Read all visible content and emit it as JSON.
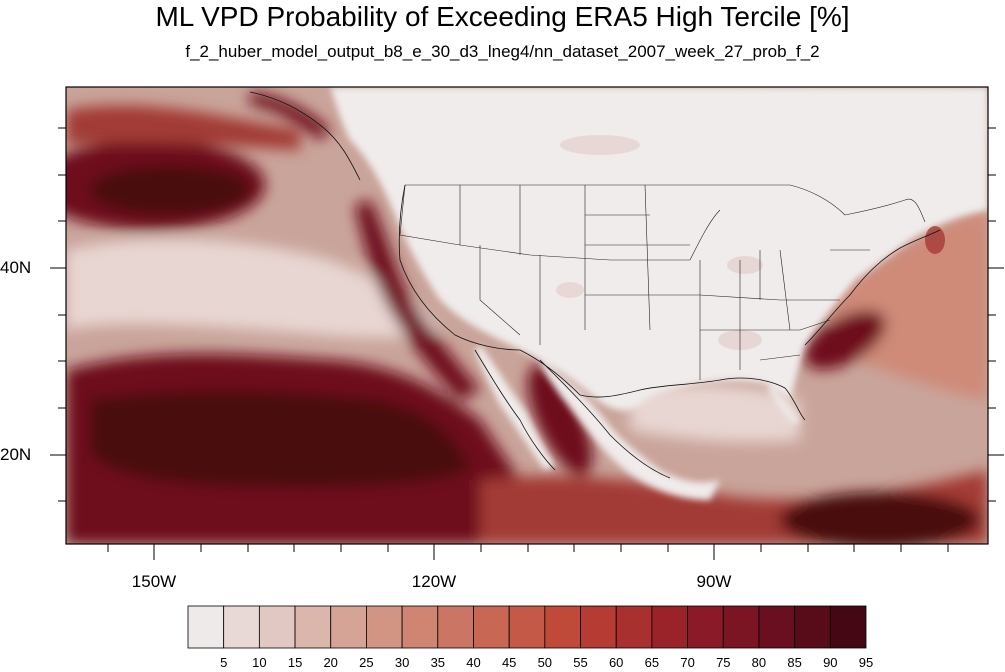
{
  "title": "ML VPD Probability of Exceeding ERA5 High Tercile [%]",
  "subtitle": "f_2_huber_model_output_b8_e_30_d3_lneg4/nn_dataset_2007_week_27_prob_f_2",
  "map": {
    "lon_labels": [
      "150W",
      "120W",
      "90W"
    ],
    "lat_labels": [
      "40N",
      "20N"
    ],
    "colors": {
      "land": "#f0eceb",
      "low": "#e7d6d2",
      "mid": "#cf8a78",
      "high": "#a23a36",
      "very_high": "#6e0f1c",
      "peak": "#4a0711"
    }
  },
  "colorbar": {
    "levels": [
      "5",
      "10",
      "15",
      "20",
      "25",
      "30",
      "35",
      "40",
      "45",
      "50",
      "55",
      "60",
      "65",
      "70",
      "75",
      "80",
      "85",
      "90",
      "95"
    ],
    "colors": [
      "#efeaea",
      "#e8d9d6",
      "#e1c8c2",
      "#dbb6ad",
      "#d5a496",
      "#d29483",
      "#cf8572",
      "#cb7664",
      "#c76754",
      "#c35946",
      "#bf4a39",
      "#b53b33",
      "#a8302f",
      "#992329",
      "#8a1a27",
      "#7b1524",
      "#6a0f1f",
      "#580b19",
      "#460714"
    ]
  }
}
